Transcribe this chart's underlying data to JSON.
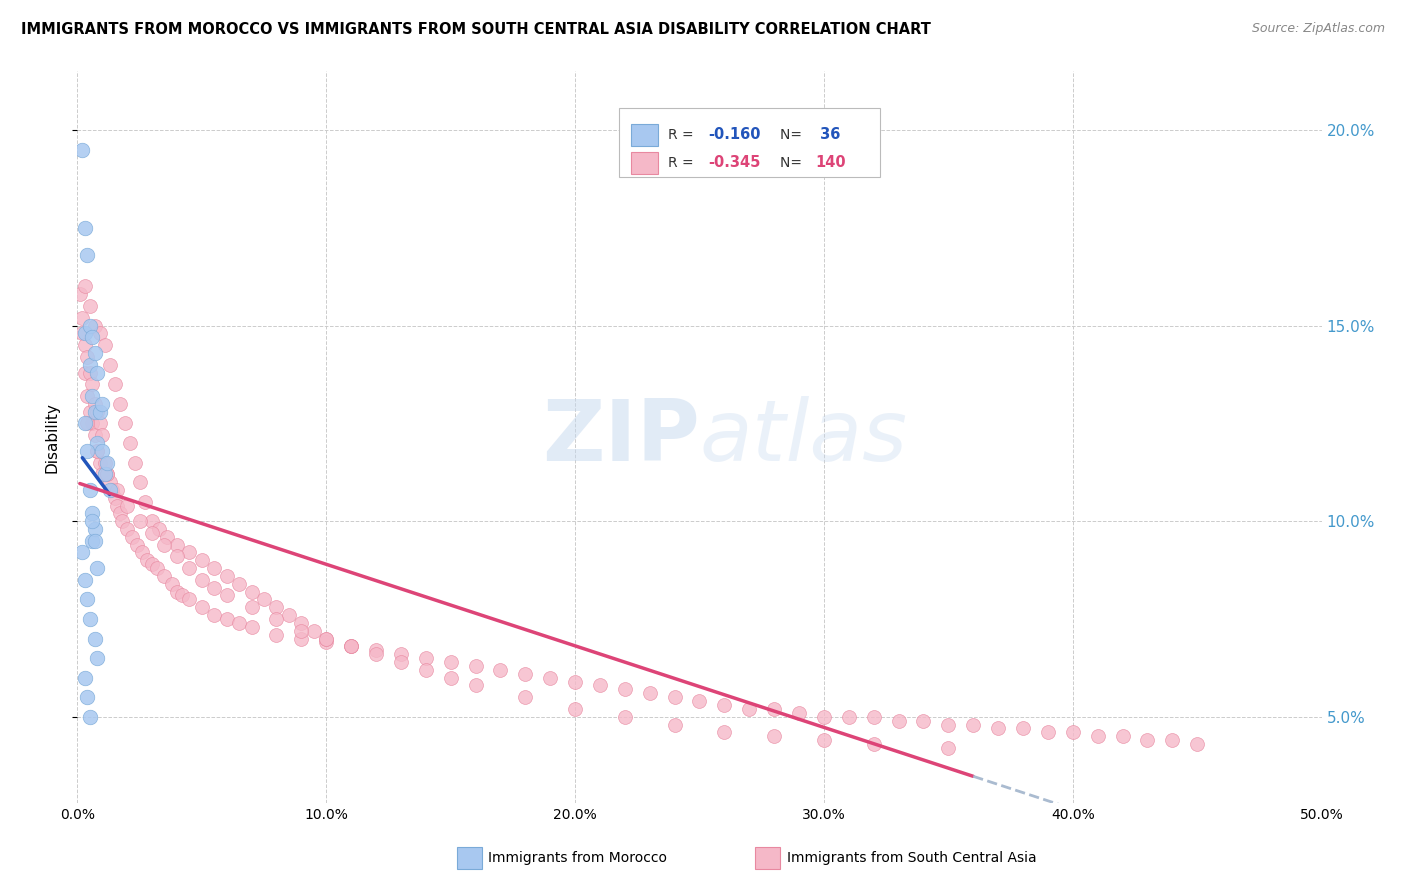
{
  "title": "IMMIGRANTS FROM MOROCCO VS IMMIGRANTS FROM SOUTH CENTRAL ASIA DISABILITY CORRELATION CHART",
  "source": "Source: ZipAtlas.com",
  "ylabel": "Disability",
  "ytick_vals": [
    0.05,
    0.1,
    0.15,
    0.2
  ],
  "xlim": [
    0.0,
    0.5
  ],
  "ylim": [
    0.028,
    0.215
  ],
  "morocco_color": "#a8c8f0",
  "morocco_edge": "#7aaad8",
  "sca_color": "#f5b8c8",
  "sca_edge": "#e888a0",
  "trend_morocco_color": "#2255bb",
  "trend_sca_color": "#dd4477",
  "trend_ext_color": "#aabbd0",
  "watermark": "ZIPatlas",
  "morocco_x": [
    0.002,
    0.003,
    0.003,
    0.004,
    0.005,
    0.005,
    0.006,
    0.006,
    0.007,
    0.007,
    0.008,
    0.008,
    0.009,
    0.01,
    0.01,
    0.011,
    0.012,
    0.013,
    0.003,
    0.004,
    0.005,
    0.006,
    0.006,
    0.007,
    0.002,
    0.003,
    0.004,
    0.005,
    0.007,
    0.008,
    0.003,
    0.004,
    0.005,
    0.006,
    0.007,
    0.008
  ],
  "morocco_y": [
    0.195,
    0.175,
    0.148,
    0.168,
    0.15,
    0.14,
    0.147,
    0.132,
    0.143,
    0.128,
    0.138,
    0.12,
    0.128,
    0.13,
    0.118,
    0.112,
    0.115,
    0.108,
    0.125,
    0.118,
    0.108,
    0.102,
    0.095,
    0.098,
    0.092,
    0.085,
    0.08,
    0.075,
    0.07,
    0.065,
    0.06,
    0.055,
    0.05,
    0.1,
    0.095,
    0.088
  ],
  "sca_x": [
    0.001,
    0.002,
    0.002,
    0.003,
    0.003,
    0.004,
    0.004,
    0.005,
    0.005,
    0.006,
    0.006,
    0.007,
    0.007,
    0.008,
    0.008,
    0.009,
    0.009,
    0.01,
    0.01,
    0.011,
    0.012,
    0.013,
    0.014,
    0.015,
    0.016,
    0.017,
    0.018,
    0.02,
    0.022,
    0.024,
    0.026,
    0.028,
    0.03,
    0.032,
    0.035,
    0.038,
    0.04,
    0.042,
    0.045,
    0.05,
    0.055,
    0.06,
    0.065,
    0.07,
    0.08,
    0.09,
    0.1,
    0.11,
    0.12,
    0.13,
    0.14,
    0.15,
    0.16,
    0.17,
    0.18,
    0.19,
    0.2,
    0.21,
    0.22,
    0.23,
    0.24,
    0.25,
    0.26,
    0.27,
    0.28,
    0.29,
    0.3,
    0.31,
    0.32,
    0.33,
    0.34,
    0.35,
    0.36,
    0.37,
    0.38,
    0.39,
    0.4,
    0.41,
    0.42,
    0.43,
    0.44,
    0.45,
    0.003,
    0.005,
    0.007,
    0.009,
    0.011,
    0.013,
    0.015,
    0.017,
    0.019,
    0.021,
    0.023,
    0.025,
    0.027,
    0.03,
    0.033,
    0.036,
    0.04,
    0.045,
    0.05,
    0.055,
    0.06,
    0.065,
    0.07,
    0.075,
    0.08,
    0.085,
    0.09,
    0.095,
    0.1,
    0.11,
    0.12,
    0.13,
    0.14,
    0.15,
    0.16,
    0.18,
    0.2,
    0.22,
    0.24,
    0.26,
    0.28,
    0.3,
    0.32,
    0.35,
    0.004,
    0.008,
    0.012,
    0.016,
    0.02,
    0.025,
    0.03,
    0.035,
    0.04,
    0.045,
    0.05,
    0.055,
    0.06,
    0.07,
    0.08,
    0.09,
    0.1,
    0.11
  ],
  "sca_y": [
    0.158,
    0.152,
    0.148,
    0.145,
    0.138,
    0.142,
    0.132,
    0.138,
    0.128,
    0.135,
    0.125,
    0.13,
    0.122,
    0.128,
    0.118,
    0.125,
    0.115,
    0.122,
    0.112,
    0.115,
    0.112,
    0.11,
    0.108,
    0.106,
    0.104,
    0.102,
    0.1,
    0.098,
    0.096,
    0.094,
    0.092,
    0.09,
    0.089,
    0.088,
    0.086,
    0.084,
    0.082,
    0.081,
    0.08,
    0.078,
    0.076,
    0.075,
    0.074,
    0.073,
    0.071,
    0.07,
    0.069,
    0.068,
    0.067,
    0.066,
    0.065,
    0.064,
    0.063,
    0.062,
    0.061,
    0.06,
    0.059,
    0.058,
    0.057,
    0.056,
    0.055,
    0.054,
    0.053,
    0.052,
    0.052,
    0.051,
    0.05,
    0.05,
    0.05,
    0.049,
    0.049,
    0.048,
    0.048,
    0.047,
    0.047,
    0.046,
    0.046,
    0.045,
    0.045,
    0.044,
    0.044,
    0.043,
    0.16,
    0.155,
    0.15,
    0.148,
    0.145,
    0.14,
    0.135,
    0.13,
    0.125,
    0.12,
    0.115,
    0.11,
    0.105,
    0.1,
    0.098,
    0.096,
    0.094,
    0.092,
    0.09,
    0.088,
    0.086,
    0.084,
    0.082,
    0.08,
    0.078,
    0.076,
    0.074,
    0.072,
    0.07,
    0.068,
    0.066,
    0.064,
    0.062,
    0.06,
    0.058,
    0.055,
    0.052,
    0.05,
    0.048,
    0.046,
    0.045,
    0.044,
    0.043,
    0.042,
    0.125,
    0.118,
    0.112,
    0.108,
    0.104,
    0.1,
    0.097,
    0.094,
    0.091,
    0.088,
    0.085,
    0.083,
    0.081,
    0.078,
    0.075,
    0.072,
    0.07,
    0.068
  ]
}
